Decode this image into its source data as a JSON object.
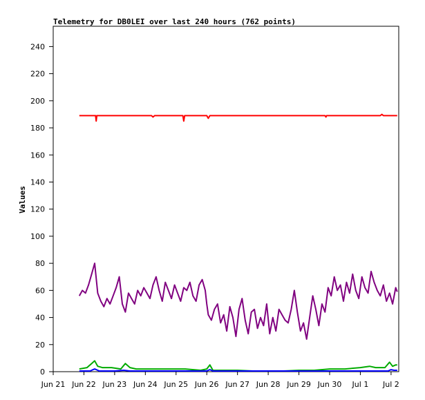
{
  "chart_data": {
    "type": "line",
    "title": "Telemetry for DB0LEI over last 240 hours (762 points)",
    "ylabel": "Values",
    "xlabel": "",
    "ylim": [
      0,
      255
    ],
    "y_ticks": [
      0,
      20,
      40,
      60,
      80,
      100,
      120,
      140,
      160,
      180,
      200,
      220,
      240
    ],
    "x_ticks": [
      "Jun 21",
      "Jun 22",
      "Jun 23",
      "Jun 24",
      "Jun 25",
      "Jun 26",
      "Jun 27",
      "Jun 28",
      "Jun 29",
      "Jun 30",
      "Jul 1",
      "Jul 2"
    ],
    "x_range_days": [
      0,
      11.25
    ],
    "grid": false,
    "legend": "none",
    "series": [
      {
        "color": "#ff0000",
        "x": [
          0.85,
          1.3,
          1.38,
          1.4,
          1.42,
          1.5,
          2.5,
          3.2,
          3.25,
          3.3,
          4.0,
          4.22,
          4.25,
          4.28,
          5.0,
          5.05,
          5.1,
          6.0,
          7.0,
          8.0,
          8.85,
          8.88,
          8.9,
          9.5,
          10.65,
          10.7,
          10.75,
          11.2
        ],
        "values": [
          189,
          189,
          189,
          185,
          189,
          189,
          189,
          189,
          188,
          189,
          189,
          189,
          185,
          189,
          189,
          187,
          189,
          189,
          189,
          189,
          189,
          188,
          189,
          189,
          189,
          190,
          189,
          189
        ]
      },
      {
        "color": "#800080",
        "x": [
          0.85,
          0.95,
          1.05,
          1.15,
          1.25,
          1.35,
          1.45,
          1.55,
          1.65,
          1.75,
          1.85,
          1.95,
          2.05,
          2.15,
          2.25,
          2.35,
          2.45,
          2.55,
          2.65,
          2.75,
          2.85,
          2.95,
          3.05,
          3.15,
          3.25,
          3.35,
          3.45,
          3.55,
          3.65,
          3.75,
          3.85,
          3.95,
          4.05,
          4.15,
          4.25,
          4.35,
          4.45,
          4.55,
          4.65,
          4.75,
          4.85,
          4.95,
          5.0,
          5.05,
          5.15,
          5.25,
          5.35,
          5.45,
          5.55,
          5.65,
          5.75,
          5.85,
          5.95,
          6.05,
          6.15,
          6.25,
          6.35,
          6.45,
          6.55,
          6.65,
          6.75,
          6.85,
          6.95,
          7.05,
          7.15,
          7.25,
          7.35,
          7.45,
          7.55,
          7.65,
          7.75,
          7.85,
          7.95,
          8.05,
          8.15,
          8.25,
          8.35,
          8.45,
          8.55,
          8.65,
          8.75,
          8.85,
          8.95,
          9.05,
          9.15,
          9.25,
          9.35,
          9.45,
          9.55,
          9.65,
          9.75,
          9.85,
          9.95,
          10.05,
          10.15,
          10.25,
          10.35,
          10.45,
          10.55,
          10.65,
          10.75,
          10.85,
          10.95,
          11.05,
          11.15,
          11.2
        ],
        "values": [
          56,
          60,
          58,
          64,
          72,
          80,
          58,
          52,
          48,
          54,
          50,
          56,
          62,
          70,
          50,
          44,
          58,
          54,
          50,
          60,
          56,
          62,
          58,
          54,
          64,
          70,
          60,
          52,
          66,
          60,
          54,
          64,
          58,
          52,
          62,
          60,
          66,
          56,
          52,
          64,
          68,
          60,
          50,
          42,
          38,
          46,
          50,
          36,
          42,
          30,
          48,
          40,
          26,
          46,
          54,
          38,
          28,
          44,
          46,
          32,
          40,
          34,
          50,
          28,
          40,
          30,
          46,
          42,
          38,
          36,
          46,
          60,
          44,
          30,
          36,
          24,
          40,
          56,
          46,
          34,
          50,
          44,
          62,
          56,
          70,
          60,
          64,
          52,
          66,
          58,
          72,
          60,
          54,
          70,
          62,
          58,
          74,
          66,
          60,
          56,
          64,
          52,
          58,
          50,
          62,
          59
        ]
      },
      {
        "color": "#00aa00",
        "x": [
          0.85,
          1.1,
          1.25,
          1.35,
          1.45,
          1.6,
          1.9,
          2.2,
          2.35,
          2.5,
          2.7,
          3.0,
          3.5,
          4.0,
          4.3,
          4.8,
          5.0,
          5.1,
          5.2,
          5.5,
          6.0,
          6.5,
          7.0,
          7.5,
          8.0,
          8.5,
          9.0,
          9.5,
          10.0,
          10.3,
          10.5,
          10.8,
          10.95,
          11.05,
          11.15,
          11.2
        ],
        "values": [
          2,
          3,
          6,
          8,
          4,
          3,
          3,
          2,
          6,
          3,
          2,
          2,
          2,
          2,
          2,
          1,
          2,
          5,
          1,
          1,
          1,
          0.5,
          0.5,
          0.5,
          1,
          1,
          2,
          2,
          3,
          4,
          3,
          3,
          7,
          4,
          5,
          5
        ]
      },
      {
        "color": "#0000ff",
        "x": [
          0.85,
          1.2,
          1.35,
          1.5,
          2.0,
          2.3,
          2.5,
          3.0,
          4.0,
          5.0,
          5.1,
          5.2,
          6.0,
          7.0,
          8.0,
          9.0,
          10.0,
          10.9,
          11.0,
          11.1,
          11.2
        ],
        "values": [
          0.5,
          0.5,
          2,
          0.5,
          0.5,
          1,
          0.5,
          0.5,
          0.5,
          0.5,
          1.5,
          0.5,
          0.5,
          0.5,
          0.5,
          0.5,
          0.5,
          0.5,
          1.5,
          1,
          1
        ]
      }
    ]
  }
}
